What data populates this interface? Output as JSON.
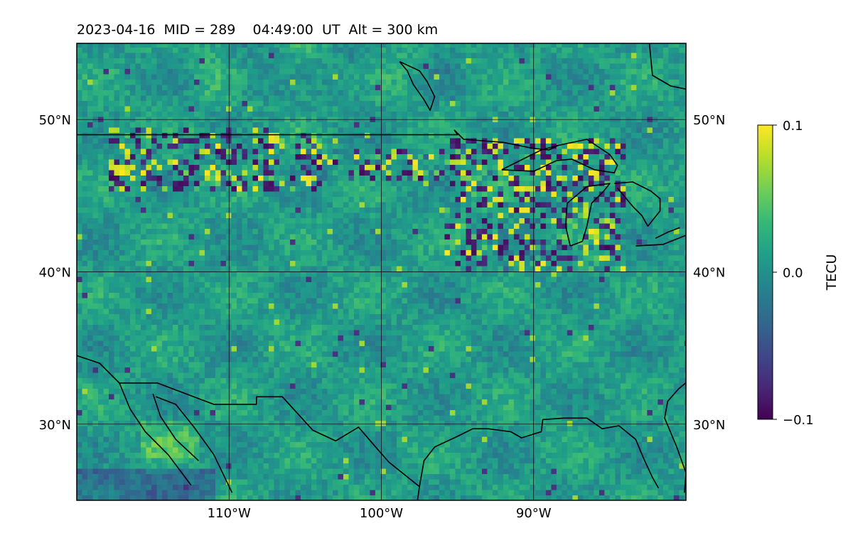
{
  "title": "2023-04-16  MID = 289    04:49:00  UT  Alt = 300 km",
  "map": {
    "lon_range": [
      -120,
      -80
    ],
    "lat_range": [
      25,
      55
    ],
    "lon_ticks": [
      {
        "value": -110,
        "label": "110°W"
      },
      {
        "value": -100,
        "label": "100°W"
      },
      {
        "value": -90,
        "label": "90°W"
      }
    ],
    "lat_ticks": [
      {
        "value": 50,
        "label": "50°N"
      },
      {
        "value": 40,
        "label": "40°N"
      },
      {
        "value": 30,
        "label": "30°N"
      }
    ],
    "gridlines": true,
    "colormap": "viridis",
    "field": "TEC perturbation (noisy grid, stronger irregularities around 42–49°N)"
  },
  "colorbar": {
    "label": "TECU",
    "range": [
      -0.1,
      0.1
    ],
    "ticks": [
      {
        "value": 0.1,
        "label": "0.1"
      },
      {
        "value": 0.0,
        "label": "0.0"
      },
      {
        "value": -0.1,
        "label": "−0.1"
      }
    ],
    "colors": [
      "#440154",
      "#482878",
      "#3e4989",
      "#31688e",
      "#26828e",
      "#1f9e89",
      "#35b779",
      "#6ece58",
      "#b5de2b",
      "#fde725"
    ]
  },
  "coastline_color": "#000000",
  "grid_color": "#000000"
}
